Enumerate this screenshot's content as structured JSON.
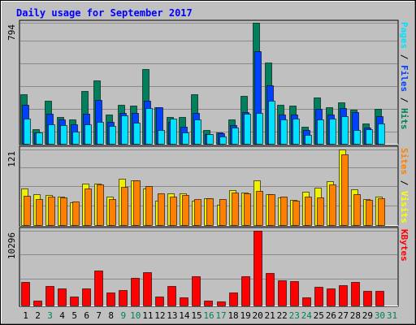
{
  "title": "Daily usage for September 2017",
  "chart_data": [
    {
      "type": "bar",
      "panel": "hits_files_pages",
      "y_max_label": "794",
      "ylim": [
        0,
        794
      ],
      "grid": true,
      "legend": "right-vertical",
      "legend_items": [
        {
          "text": "Pages",
          "color": "#00e0ff"
        },
        {
          "text": "Files",
          "color": "#0040ff"
        },
        {
          "text": "Hits",
          "color": "#00805c"
        }
      ],
      "series": [
        {
          "name": "Hits",
          "color": "#00805c",
          "values": [
            323,
            97,
            282,
            178,
            161,
            346,
            416,
            191,
            255,
            248,
            490,
            240,
            174,
            174,
            323,
            90,
            74,
            160,
            312,
            794,
            535,
            255,
            248,
            110,
            303,
            240,
            271,
            223,
            134,
            230
          ]
        },
        {
          "name": "Files",
          "color": "#0040ff",
          "values": [
            255,
            73,
            196,
            162,
            130,
            195,
            287,
            142,
            202,
            200,
            285,
            238,
            143,
            113,
            202,
            63,
            70,
            123,
            210,
            606,
            386,
            190,
            192,
            91,
            230,
            190,
            236,
            208,
            106,
            181
          ]
        },
        {
          "name": "Pages",
          "color": "#00e0ff",
          "values": [
            164,
            73,
            127,
            121,
            78,
            129,
            144,
            117,
            189,
            138,
            232,
            89,
            164,
            76,
            158,
            63,
            49,
            108,
            199,
            202,
            282,
            160,
            165,
            59,
            158,
            163,
            181,
            90,
            98,
            133
          ]
        }
      ]
    },
    {
      "type": "bar",
      "panel": "visits_sites",
      "y_max_label": "121",
      "ylim": [
        0,
        121
      ],
      "grid": true,
      "legend": "right-vertical",
      "legend_items": [
        {
          "text": "Sites",
          "color": "#ff8000"
        },
        {
          "text": "Visits",
          "color": "#ffff00"
        }
      ],
      "series": [
        {
          "name": "Visits",
          "color": "#f0f000",
          "values": [
            59,
            49,
            48,
            46,
            36,
            67,
            67,
            46,
            74,
            72,
            59,
            39,
            51,
            51,
            39,
            43,
            32,
            56,
            52,
            71,
            49,
            44,
            40,
            53,
            60,
            70,
            121,
            57,
            42,
            46
          ]
        },
        {
          "name": "Sites",
          "color": "#ff8000",
          "values": [
            47,
            41,
            46,
            44,
            38,
            59,
            65,
            41,
            61,
            72,
            62,
            51,
            46,
            48,
            41,
            43,
            41,
            52,
            51,
            54,
            50,
            45,
            39,
            45,
            44,
            65,
            113,
            50,
            40,
            43
          ]
        }
      ]
    },
    {
      "type": "bar",
      "panel": "kbytes",
      "y_max_label": "10296",
      "ylim": [
        0,
        10296
      ],
      "grid": true,
      "legend": "right-vertical",
      "legend_items": [
        {
          "text": "KBytes",
          "color": "#ff0000"
        }
      ],
      "series": [
        {
          "name": "KBytes",
          "color": "#ff0000",
          "values": [
            3270,
            635,
            2656,
            2400,
            1250,
            2400,
            4848,
            1796,
            2117,
            3821,
            4534,
            1243,
            2700,
            1085,
            4055,
            647,
            528,
            1796,
            4055,
            10296,
            4462,
            3460,
            3341,
            1160,
            2596,
            2329,
            2820,
            3270,
            2016,
            2050
          ]
        }
      ]
    }
  ],
  "days": [
    "1",
    "2",
    "3",
    "4",
    "5",
    "6",
    "7",
    "8",
    "9",
    "10",
    "11",
    "12",
    "13",
    "14",
    "15",
    "16",
    "17",
    "18",
    "19",
    "20",
    "21",
    "22",
    "23",
    "24",
    "25",
    "26",
    "27",
    "28",
    "29",
    "30",
    "31"
  ],
  "weekend_days": [
    3,
    9,
    10,
    16,
    17,
    23,
    24,
    30,
    31
  ],
  "colors": {
    "background": "#c0c0c0",
    "plot_bg": "#c0c0c0",
    "grid": "#8c8c8c",
    "title": "#0000ff",
    "weekday_label": "#000000",
    "weekend_label": "#00805c",
    "hits": "#00805c",
    "files": "#0040ff",
    "pages": "#00e0ff",
    "visits": "#f0f000",
    "sites": "#ff8000",
    "kbytes": "#ff0000"
  }
}
